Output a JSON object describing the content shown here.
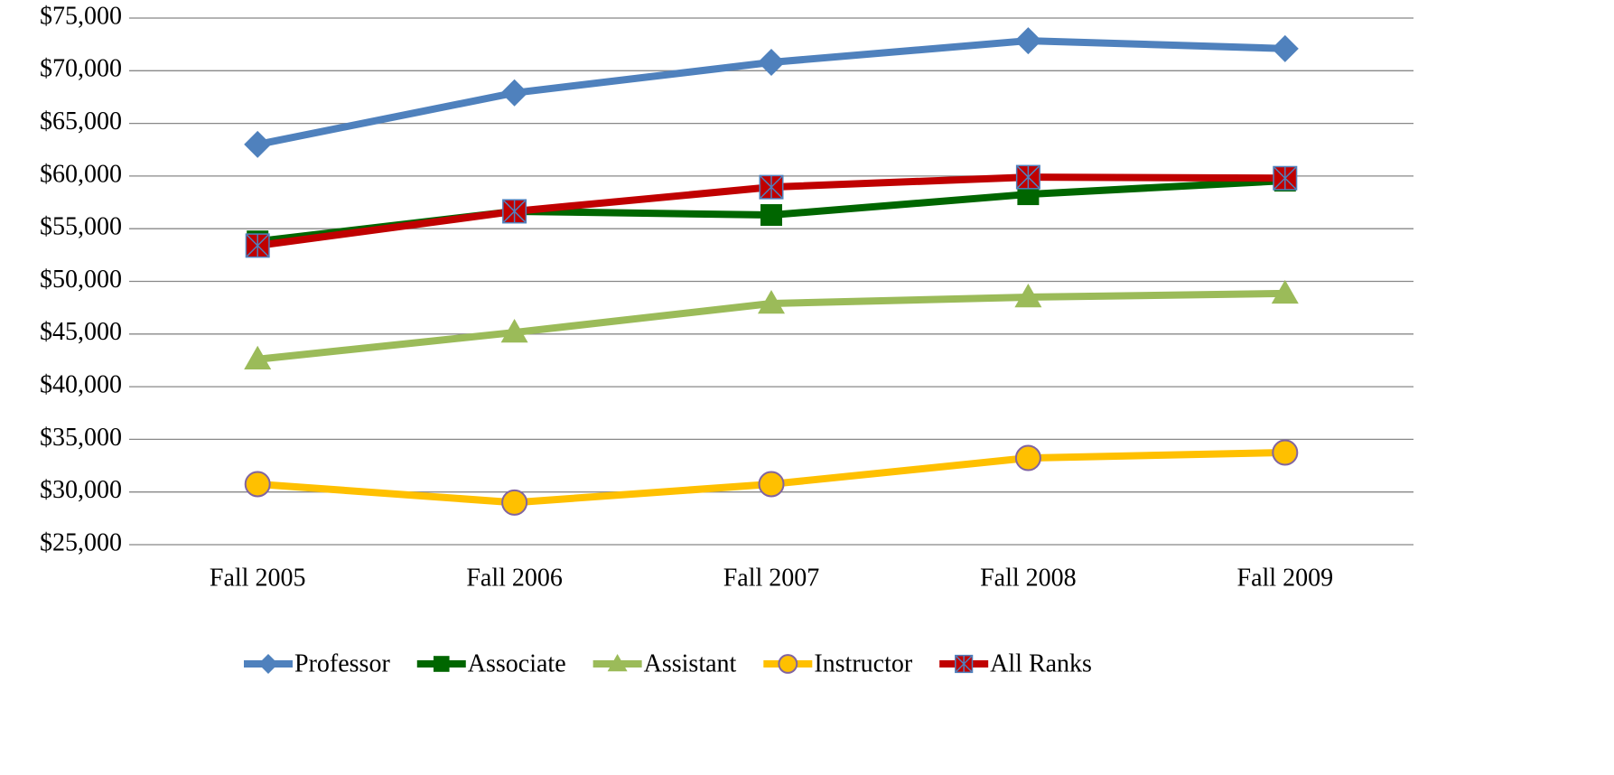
{
  "chart_data": {
    "type": "line",
    "categories": [
      "Fall 2005",
      "Fall 2006",
      "Fall 2007",
      "Fall 2008",
      "Fall 2009"
    ],
    "series": [
      {
        "name": "Professor",
        "color": "#4f81bd",
        "marker": "diamond",
        "values": [
          63000,
          67900,
          70800,
          72850,
          72100
        ]
      },
      {
        "name": "Associate",
        "color": "#006600",
        "marker": "square",
        "values": [
          53800,
          56650,
          56300,
          58270,
          59560
        ]
      },
      {
        "name": "Assistant",
        "color": "#9bbb59",
        "marker": "triangle",
        "values": [
          42600,
          45150,
          47900,
          48500,
          48850
        ]
      },
      {
        "name": "Instructor",
        "color": "#ffc000",
        "marker": "circle",
        "values": [
          30750,
          29000,
          30750,
          33230,
          33750
        ]
      },
      {
        "name": "All Ranks",
        "color": "#c00000",
        "marker": "xsquare",
        "values": [
          53400,
          56650,
          58950,
          59900,
          59800
        ]
      }
    ],
    "ylim": [
      25000,
      75000
    ],
    "yticks": [
      {
        "value": 25000,
        "label": "$25,000"
      },
      {
        "value": 30000,
        "label": "$30,000"
      },
      {
        "value": 35000,
        "label": "$35,000"
      },
      {
        "value": 40000,
        "label": "$40,000"
      },
      {
        "value": 45000,
        "label": "$45,000"
      },
      {
        "value": 50000,
        "label": "$50,000"
      },
      {
        "value": 55000,
        "label": "$55,000"
      },
      {
        "value": 60000,
        "label": "$60,000"
      },
      {
        "value": 65000,
        "label": "$65,000"
      },
      {
        "value": 70000,
        "label": "$70,000"
      },
      {
        "value": 75000,
        "label": "$75,000"
      }
    ],
    "grid": true,
    "legend": "bottom"
  }
}
